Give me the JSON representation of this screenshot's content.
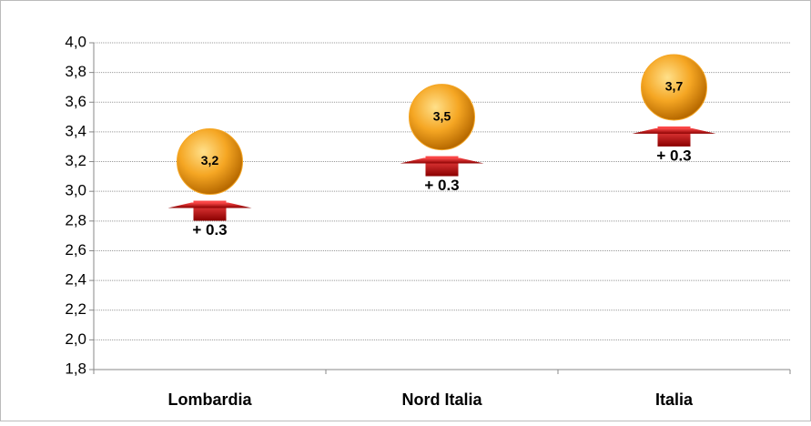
{
  "chart_data": {
    "type": "dot",
    "categories": [
      "Lombardia",
      "Nord Italia",
      "Italia"
    ],
    "series": [
      {
        "color": "#f5a623",
        "values": [
          3.2,
          3.5,
          3.7
        ],
        "value_labels": [
          "3,2",
          "3,5",
          "3,7"
        ]
      },
      {
        "color": "#d40000",
        "values": [
          2.9,
          3.2,
          3.4
        ]
      }
    ],
    "changes": {
      "values": [
        0.3,
        0.3,
        0.3
      ],
      "value_labels": [
        "+ 0.3",
        "+ 0.3",
        "+ 0.3"
      ]
    },
    "ylim": [
      1.8,
      4.0
    ],
    "yticks": [
      {
        "value": 1.8,
        "label": "1,8"
      },
      {
        "value": 2.0,
        "label": "2,0"
      },
      {
        "value": 2.2,
        "label": "2,2"
      },
      {
        "value": 2.4,
        "label": "2,4"
      },
      {
        "value": 2.6,
        "label": "2,6"
      },
      {
        "value": 2.8,
        "label": "2,8"
      },
      {
        "value": 3.0,
        "label": "3,0"
      },
      {
        "value": 3.2,
        "label": "3,2"
      },
      {
        "value": 3.4,
        "label": "3,4"
      },
      {
        "value": 3.6,
        "label": "3,6"
      },
      {
        "value": 3.8,
        "label": "3,8"
      },
      {
        "value": 4.0,
        "label": "4,0"
      }
    ],
    "grid": true
  }
}
